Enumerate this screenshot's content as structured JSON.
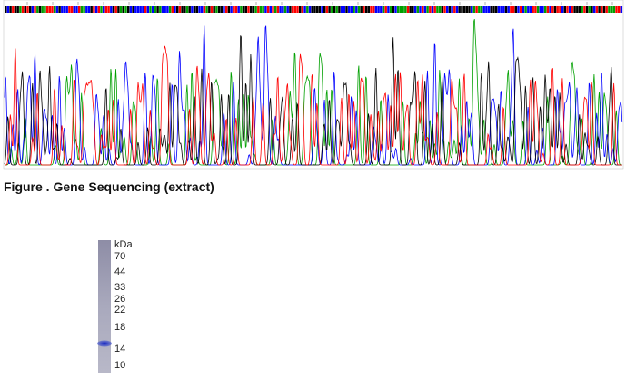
{
  "caption": "Figure . Gene Sequencing (extract)",
  "gel": {
    "unit": "kDa",
    "markers": [
      70,
      44,
      33,
      26,
      22,
      18,
      14,
      10
    ]
  }
}
